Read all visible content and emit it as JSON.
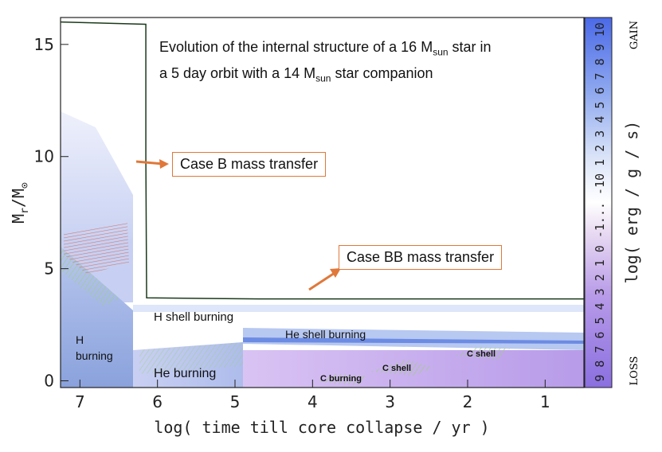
{
  "title": {
    "line1_pre": "Evolution of the internal structure of a 16 M",
    "line1_sub": "sun",
    "line1_post": " star in",
    "line2_pre": "a 5 day orbit with a 14 M",
    "line2_sub": "sun",
    "line2_post": "  star companion"
  },
  "chart_data": {
    "type": "area",
    "xlabel": "log( time till core collapse / yr )",
    "ylabel_main": "M",
    "ylabel_sub": "r",
    "ylabel_post": "/M",
    "ylabel_sun": "⊙",
    "xlim": [
      7.25,
      0.5
    ],
    "ylim": [
      -0.3,
      16.2
    ],
    "x_ticks": [
      7,
      6,
      5,
      4,
      3,
      2,
      1
    ],
    "y_ticks": [
      0,
      5,
      10,
      15
    ],
    "series": [
      {
        "name": "",
        "x": [
          7.25,
          6.15,
          6.15,
          6.14,
          4.7,
          3.0,
          0.5
        ],
        "y": [
          16.0,
          15.9,
          10.0,
          3.7,
          3.65,
          3.65,
          3.65
        ]
      }
    ],
    "annotations": {
      "case_b": "Case B mass transfer",
      "case_bb": "Case BB mass transfer",
      "h_burning_1": "H",
      "h_burning_2": "burning",
      "h_shell": "H shell burning",
      "he_burning": "He burning",
      "he_shell": "He shell burning",
      "c_burning": "C burning",
      "c_shell_1": "C shell",
      "c_shell_2": "C shell"
    },
    "colorbar": {
      "label": "log( erg / g / s)",
      "top_label": "GAIN",
      "bottom_label": "LOSS",
      "ticks_text": "9 8 7 6 5 4 3 2 1 0 -1... -10 1 2 3 4 5 6 7 8 9 10"
    }
  }
}
